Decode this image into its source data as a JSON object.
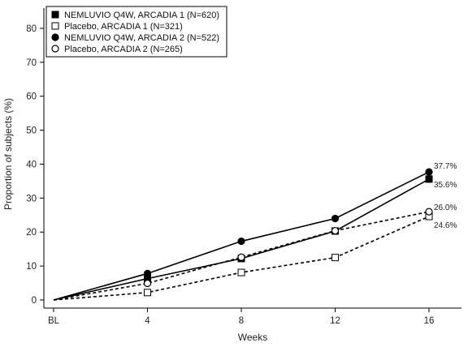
{
  "chart_data": {
    "type": "line",
    "title": "",
    "xlabel": "Weeks",
    "ylabel": "Proportion of subjects (%)",
    "categories": [
      "BL",
      "4",
      "8",
      "12",
      "16"
    ],
    "x": [
      0,
      4,
      8,
      12,
      16
    ],
    "ylim": [
      0,
      85
    ],
    "yticks": [
      "0",
      "10",
      "20",
      "30",
      "40",
      "50",
      "60",
      "70",
      "80"
    ],
    "grid": false,
    "legend_position": "top-left",
    "series": [
      {
        "name": "NEMLUVIO Q4W, ARCADIA 1 (N=620)",
        "values": [
          0,
          6.3,
          12.2,
          20.3,
          35.6
        ],
        "marker": "square-filled",
        "line": "solid",
        "color": "#000000"
      },
      {
        "name": "Placebo, ARCADIA 1 (N=321)",
        "values": [
          0,
          2.2,
          8.1,
          12.5,
          24.6
        ],
        "marker": "square-open",
        "line": "dashed",
        "color": "#000000"
      },
      {
        "name": "NEMLUVIO Q4W, ARCADIA 2 (N=522)",
        "values": [
          0,
          7.8,
          17.3,
          24.0,
          37.7
        ],
        "marker": "circle-filled",
        "line": "solid",
        "color": "#000000"
      },
      {
        "name": "Placebo, ARCADIA 2 (N=265)",
        "values": [
          0,
          4.9,
          12.6,
          20.4,
          26.0
        ],
        "marker": "circle-open",
        "line": "dashed",
        "color": "#000000"
      }
    ],
    "end_labels": [
      {
        "text": "37.7%",
        "series": 2
      },
      {
        "text": "35.6%",
        "series": 0
      },
      {
        "text": "26.0%",
        "series": 3
      },
      {
        "text": "24.6%",
        "series": 1
      }
    ]
  }
}
